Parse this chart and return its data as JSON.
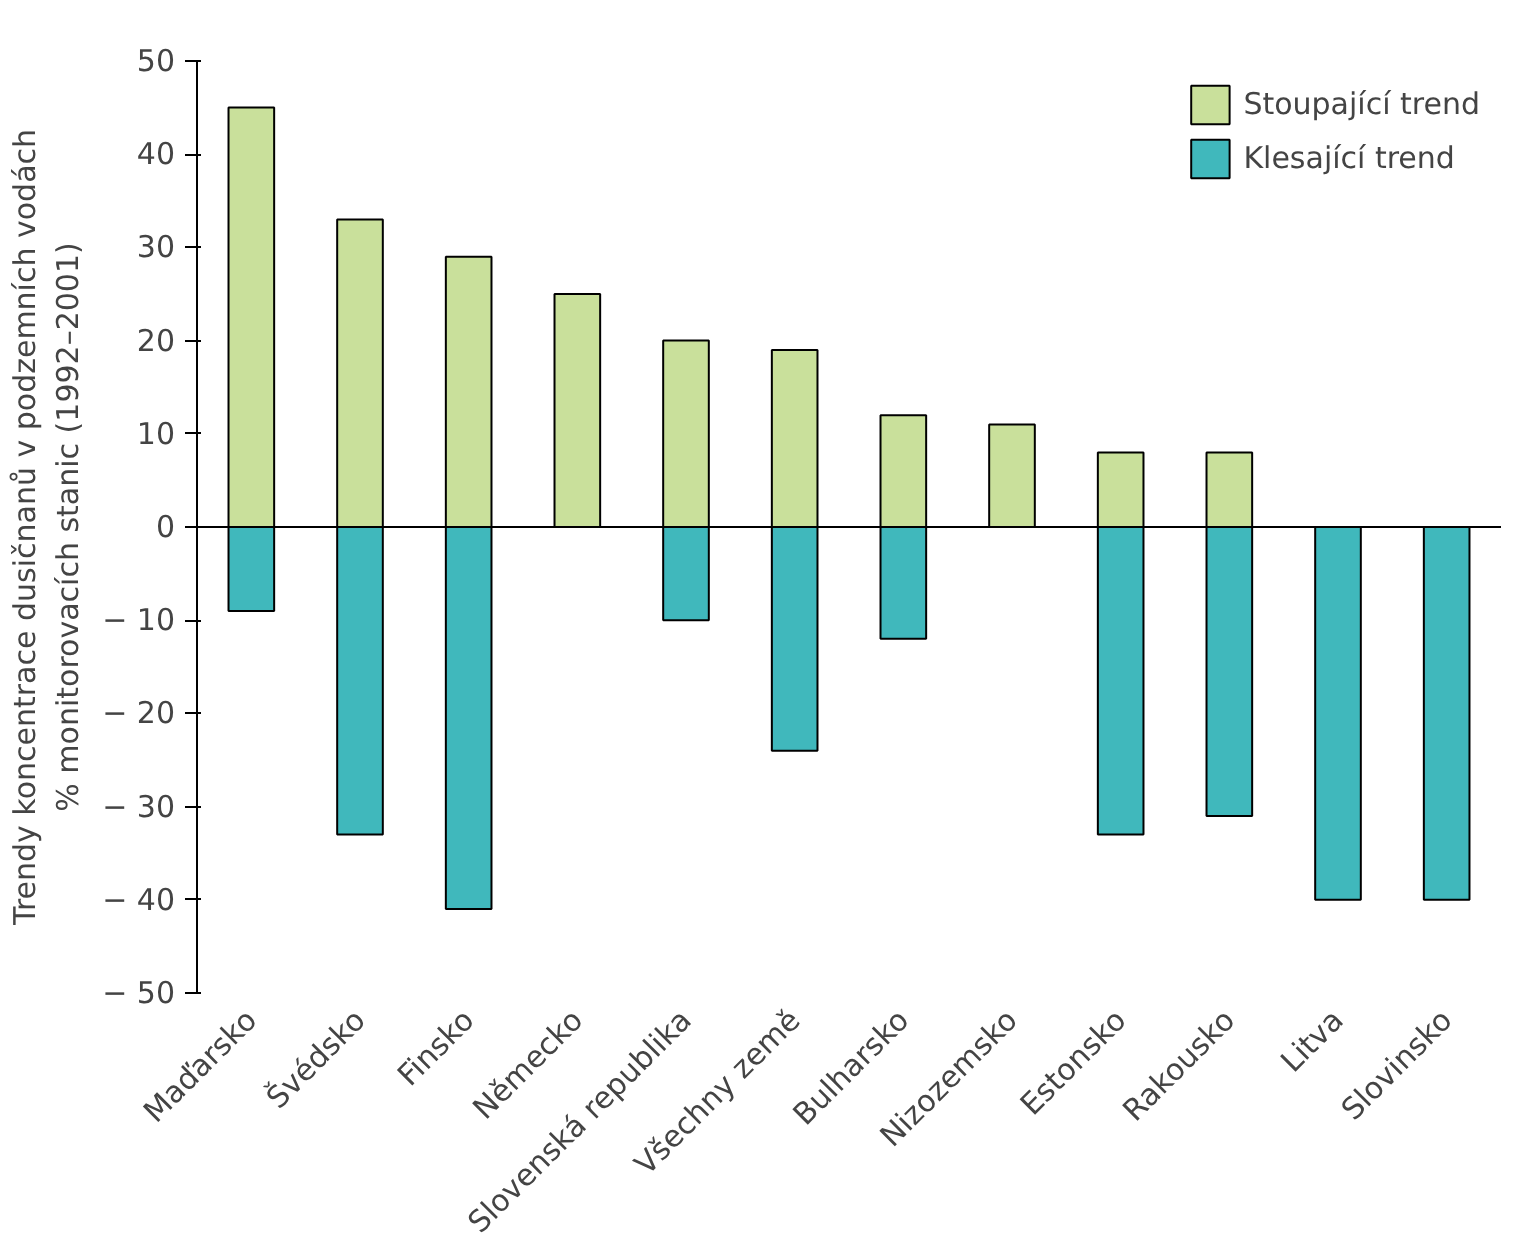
{
  "chart_data": {
    "type": "bar",
    "ylabel": "Trendy koncentrace dusičnanů v podzemních vodách\n% monitorovacích stanic (1992–2001)",
    "categories": [
      "Maďarsko",
      "Švédsko",
      "Finsko",
      "Německo",
      "Slovenská republika",
      "Všechny země",
      "Bulharsko",
      "Nizozemsko",
      "Estonsko",
      "Rakousko",
      "Litva",
      "Slovinsko"
    ],
    "series": [
      {
        "name": "Stoupající trend",
        "color": "#c9e09b",
        "values": [
          45,
          33,
          29,
          25,
          20,
          19,
          12,
          11,
          8,
          8,
          0,
          0
        ]
      },
      {
        "name": "Klesající trend",
        "color": "#40b8bc",
        "values": [
          -9,
          -33,
          -41,
          0,
          -10,
          -24,
          -12,
          0,
          -33,
          -31,
          -40,
          -40
        ]
      }
    ],
    "ylim": [
      -50,
      50
    ],
    "yticks": [
      50,
      40,
      30,
      20,
      10,
      0,
      {
        "value": -10,
        "label": "− 10"
      },
      {
        "value": -20,
        "label": "− 20"
      },
      {
        "value": -30,
        "label": "− 30"
      },
      {
        "value": -40,
        "label": "− 40"
      },
      {
        "value": -50,
        "label": "− 50"
      }
    ],
    "ref_lines": [
      {
        "axis": "y",
        "value": 0,
        "color": "#000000"
      }
    ],
    "stacked": true,
    "grid": false,
    "legend": "top right"
  }
}
